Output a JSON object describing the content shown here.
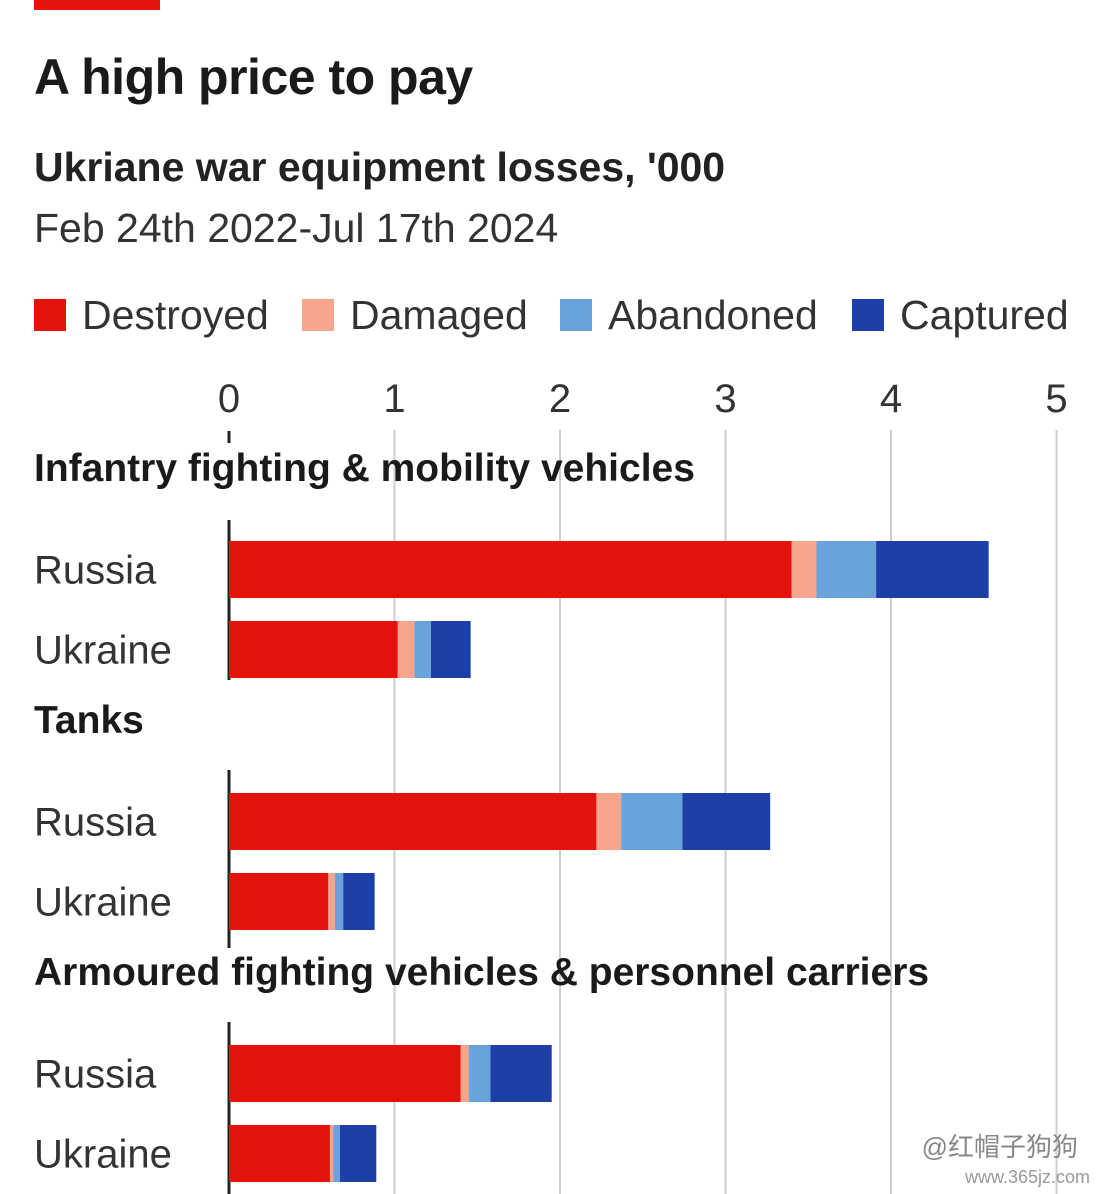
{
  "title": "A high price to pay",
  "subtitle": "Ukriane war equipment losses, '000",
  "dates": "Feb 24th 2022-Jul 17th 2024",
  "colors": {
    "destroyed": "#e3120b",
    "damaged": "#f5a58c",
    "abandoned": "#6aa3dc",
    "captured": "#1e3fa8",
    "grid": "#cfcfcf",
    "axis": "#222222"
  },
  "legend": [
    {
      "label": "Destroyed",
      "color": "#e3120b"
    },
    {
      "label": "Damaged",
      "color": "#f5a58c"
    },
    {
      "label": "Abandoned",
      "color": "#6aa3dc"
    },
    {
      "label": "Captured",
      "color": "#1e3fa8"
    }
  ],
  "watermark": "@红帽子狗狗",
  "watermark_url": "www.365jz.com",
  "chart_data": {
    "type": "bar",
    "orientation": "horizontal",
    "stacked": true,
    "units": "'000",
    "xlim": [
      0,
      5
    ],
    "xticks": [
      "0",
      "1",
      "2",
      "3",
      "4",
      "5"
    ],
    "grid": true,
    "legend_position": "top",
    "series_names": [
      "Destroyed",
      "Damaged",
      "Abandoned",
      "Captured"
    ],
    "groups": [
      {
        "label": "Infantry fighting & mobility vehicles",
        "bars": [
          {
            "label": "Russia",
            "values": [
              3.4,
              0.15,
              0.36,
              0.68
            ]
          },
          {
            "label": "Ukraine",
            "values": [
              1.02,
              0.1,
              0.1,
              0.24
            ]
          }
        ]
      },
      {
        "label": "Tanks",
        "bars": [
          {
            "label": "Russia",
            "values": [
              2.22,
              0.15,
              0.37,
              0.53
            ]
          },
          {
            "label": "Ukraine",
            "values": [
              0.6,
              0.04,
              0.05,
              0.19
            ]
          }
        ]
      },
      {
        "label": "Armoured fighting vehicles & personnel carriers",
        "bars": [
          {
            "label": "Russia",
            "values": [
              1.4,
              0.05,
              0.13,
              0.37
            ]
          },
          {
            "label": "Ukraine",
            "values": [
              0.61,
              0.02,
              0.04,
              0.22
            ]
          }
        ]
      }
    ]
  }
}
